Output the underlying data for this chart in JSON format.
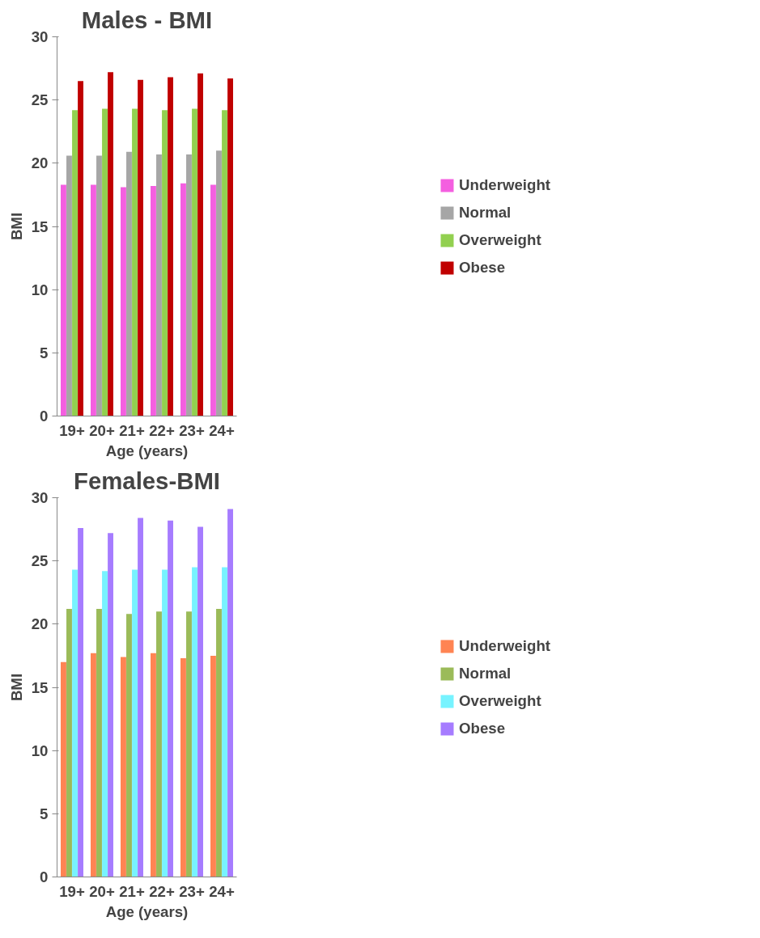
{
  "chart_data": [
    {
      "type": "bar",
      "title": "Males - BMI",
      "xlabel": "Age (years)",
      "ylabel": "BMI",
      "categories": [
        "19+",
        "20+",
        "21+",
        "22+",
        "23+",
        "24+"
      ],
      "ylim": [
        0,
        30
      ],
      "yticks": [
        0,
        5,
        10,
        15,
        20,
        25,
        30
      ],
      "grid": false,
      "legend": "right",
      "series": [
        {
          "name": "Underweight",
          "color": "#f45fe0",
          "values": [
            18.3,
            18.3,
            18.1,
            18.2,
            18.4,
            18.3
          ]
        },
        {
          "name": "Normal",
          "color": "#a6a6a6",
          "values": [
            20.6,
            20.6,
            20.9,
            20.7,
            20.7,
            21.0
          ]
        },
        {
          "name": "Overweight",
          "color": "#92d050",
          "values": [
            24.2,
            24.3,
            24.3,
            24.2,
            24.3,
            24.2
          ]
        },
        {
          "name": "Obese",
          "color": "#c00000",
          "values": [
            26.5,
            27.2,
            26.6,
            26.8,
            27.1,
            26.7
          ]
        }
      ]
    },
    {
      "type": "bar",
      "title": "Females-BMI",
      "xlabel": "Age (years)",
      "ylabel": "BMI",
      "categories": [
        "19+",
        "20+",
        "21+",
        "22+",
        "23+",
        "24+"
      ],
      "ylim": [
        0,
        30
      ],
      "yticks": [
        0,
        5,
        10,
        15,
        20,
        25,
        30
      ],
      "grid": false,
      "legend": "right",
      "series": [
        {
          "name": "Underweight",
          "color": "#ff8453",
          "values": [
            17.0,
            17.7,
            17.4,
            17.7,
            17.3,
            17.5
          ]
        },
        {
          "name": "Normal",
          "color": "#9bbb59",
          "values": [
            21.2,
            21.2,
            20.8,
            21.0,
            21.0,
            21.2
          ]
        },
        {
          "name": "Overweight",
          "color": "#77f3ff",
          "values": [
            24.3,
            24.2,
            24.3,
            24.3,
            24.5,
            24.5
          ]
        },
        {
          "name": "Obese",
          "color": "#a67cff",
          "values": [
            27.6,
            27.2,
            28.4,
            28.2,
            27.7,
            29.1
          ]
        }
      ]
    }
  ]
}
